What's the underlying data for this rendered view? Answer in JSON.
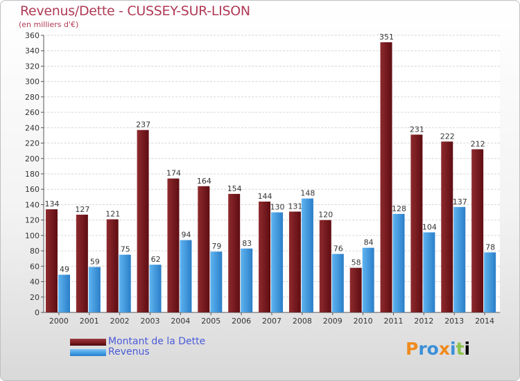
{
  "chart_data": {
    "type": "bar",
    "title": "Revenus/Dette - CUSSEY-SUR-LISON",
    "subtitle": "(en milliers d'€)",
    "categories": [
      "2000",
      "2001",
      "2002",
      "2003",
      "2004",
      "2005",
      "2006",
      "2007",
      "2008",
      "2009",
      "2010",
      "2011",
      "2012",
      "2013",
      "2014"
    ],
    "series": [
      {
        "name": "Montant de la Dette",
        "color": "#7a1a1e",
        "values": [
          134,
          127,
          121,
          237,
          174,
          164,
          154,
          144,
          131,
          120,
          58,
          351,
          231,
          222,
          212
        ]
      },
      {
        "name": "Revenus",
        "color": "#3d9be0",
        "values": [
          49,
          59,
          75,
          62,
          94,
          79,
          83,
          130,
          148,
          76,
          84,
          128,
          104,
          137,
          78
        ]
      }
    ],
    "ylim": [
      0,
      360
    ],
    "yticks": [
      0,
      20,
      40,
      60,
      80,
      100,
      120,
      140,
      160,
      180,
      200,
      220,
      240,
      260,
      280,
      300,
      320,
      340,
      360
    ],
    "grid": true,
    "legend_position": "bottom-left"
  },
  "logo_text": "Proxiti"
}
